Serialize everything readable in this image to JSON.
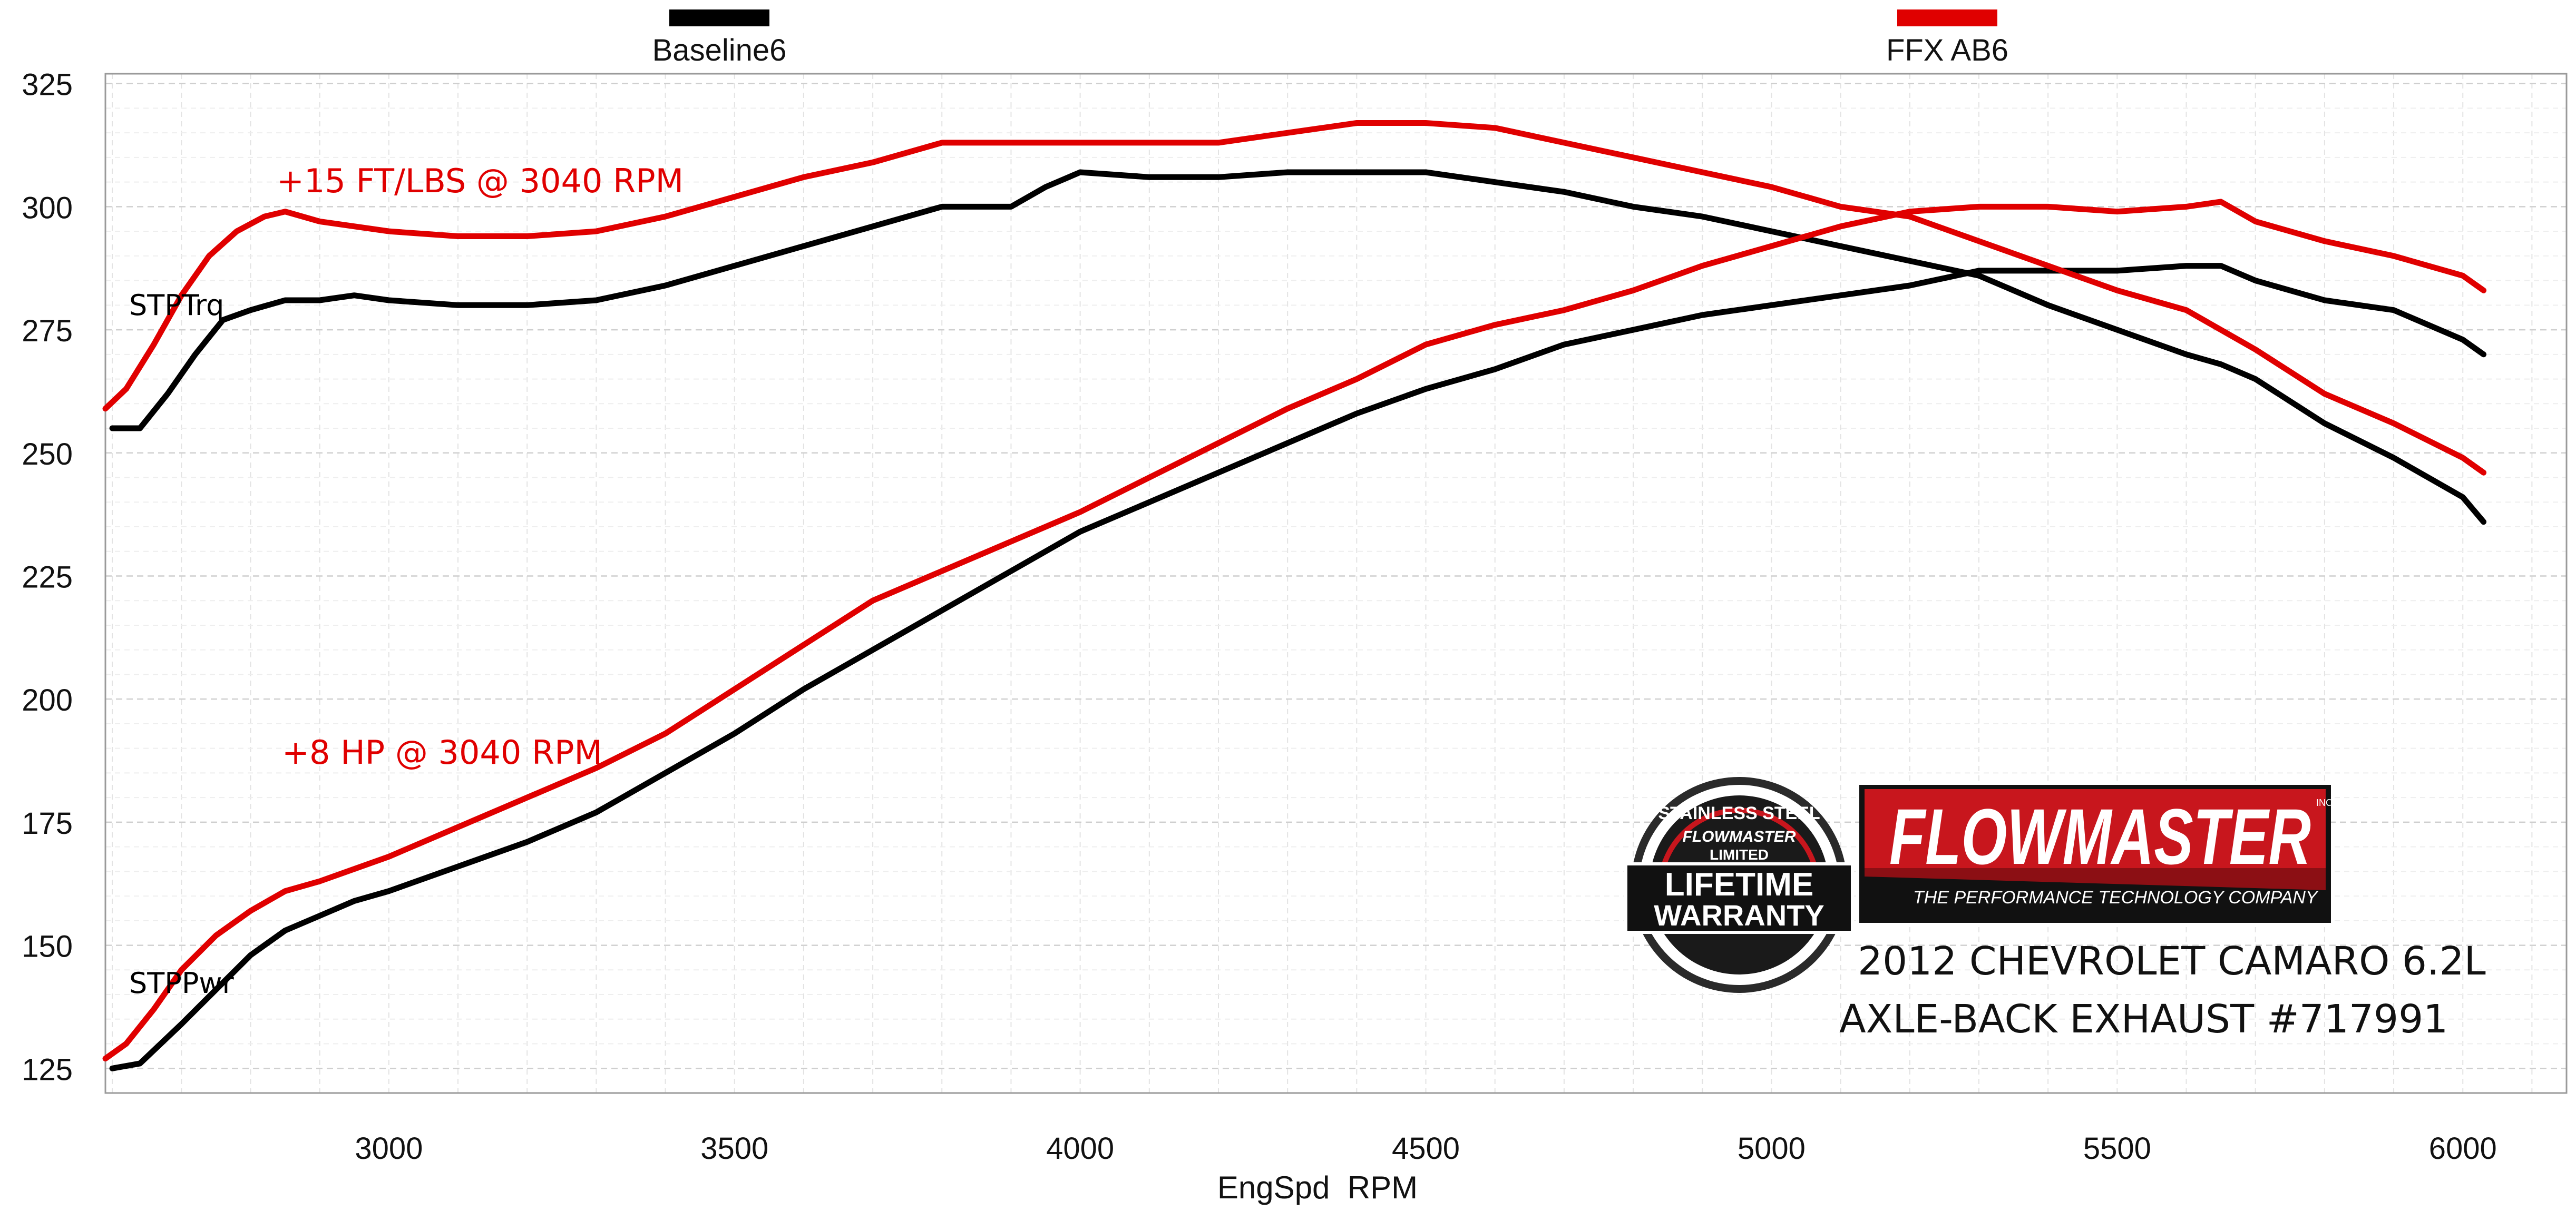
{
  "chart_data": {
    "type": "line",
    "xlabel": "EngSpd  RPM",
    "ylabel": "",
    "xlim": [
      2590,
      6150
    ],
    "ylim": [
      120,
      327
    ],
    "x_ticks": [
      3000,
      3500,
      4000,
      4500,
      5000,
      5500,
      6000
    ],
    "y_ticks": [
      125,
      150,
      175,
      200,
      225,
      250,
      275,
      300,
      325
    ],
    "grid": true,
    "legend": {
      "placement": "top",
      "entries": [
        {
          "name": "Baseline6",
          "color": "#000000"
        },
        {
          "name": "FFX AB6",
          "color": "#e00000"
        }
      ]
    },
    "series": [
      {
        "name": "Baseline6",
        "measure": "STPTrq",
        "color": "#000000",
        "x": [
          2600,
          2640,
          2680,
          2720,
          2760,
          2800,
          2850,
          2900,
          2950,
          3000,
          3100,
          3200,
          3300,
          3400,
          3500,
          3600,
          3700,
          3800,
          3900,
          3950,
          4000,
          4100,
          4200,
          4300,
          4400,
          4500,
          4600,
          4700,
          4800,
          4900,
          5000,
          5100,
          5200,
          5300,
          5400,
          5500,
          5600,
          5650,
          5700,
          5800,
          5900,
          6000,
          6030
        ],
        "y": [
          255,
          255,
          262,
          270,
          277,
          279,
          281,
          281,
          282,
          281,
          280,
          280,
          281,
          284,
          288,
          292,
          296,
          300,
          300,
          304,
          307,
          306,
          306,
          307,
          307,
          307,
          305,
          303,
          300,
          298,
          295,
          292,
          289,
          286,
          280,
          275,
          270,
          268,
          265,
          256,
          249,
          241,
          236
        ]
      },
      {
        "name": "Baseline6",
        "measure": "STPPwr",
        "color": "#000000",
        "x": [
          2600,
          2640,
          2700,
          2750,
          2800,
          2850,
          2900,
          2950,
          3000,
          3100,
          3200,
          3300,
          3400,
          3500,
          3600,
          3700,
          3800,
          3900,
          4000,
          4100,
          4200,
          4300,
          4400,
          4500,
          4600,
          4700,
          4800,
          4900,
          5000,
          5100,
          5200,
          5300,
          5400,
          5500,
          5600,
          5650,
          5700,
          5800,
          5900,
          6000,
          6030
        ],
        "y": [
          125,
          126,
          134,
          141,
          148,
          153,
          156,
          159,
          161,
          166,
          171,
          177,
          185,
          193,
          202,
          210,
          218,
          226,
          234,
          240,
          246,
          252,
          258,
          263,
          267,
          272,
          275,
          278,
          280,
          282,
          284,
          287,
          287,
          287,
          288,
          288,
          285,
          281,
          279,
          273,
          270
        ]
      },
      {
        "name": "FFX AB6",
        "measure": "STPTrq",
        "color": "#e00000",
        "x": [
          2590,
          2620,
          2660,
          2700,
          2740,
          2780,
          2820,
          2850,
          2900,
          3000,
          3100,
          3200,
          3300,
          3400,
          3500,
          3600,
          3700,
          3800,
          3900,
          4000,
          4100,
          4200,
          4300,
          4400,
          4500,
          4600,
          4700,
          4800,
          4900,
          5000,
          5100,
          5200,
          5300,
          5400,
          5500,
          5600,
          5700,
          5800,
          5900,
          6000,
          6030
        ],
        "y": [
          259,
          263,
          272,
          282,
          290,
          295,
          298,
          299,
          297,
          295,
          294,
          294,
          295,
          298,
          302,
          306,
          309,
          313,
          313,
          313,
          313,
          313,
          315,
          317,
          317,
          316,
          313,
          310,
          307,
          304,
          300,
          298,
          293,
          288,
          283,
          279,
          271,
          262,
          256,
          249,
          246
        ]
      },
      {
        "name": "FFX AB6",
        "measure": "STPPwr",
        "color": "#e00000",
        "x": [
          2590,
          2620,
          2660,
          2700,
          2750,
          2800,
          2850,
          2900,
          3000,
          3100,
          3200,
          3300,
          3400,
          3500,
          3600,
          3700,
          3800,
          3900,
          4000,
          4100,
          4200,
          4300,
          4400,
          4500,
          4600,
          4700,
          4800,
          4900,
          5000,
          5100,
          5200,
          5300,
          5400,
          5500,
          5600,
          5650,
          5700,
          5800,
          5900,
          6000,
          6030
        ],
        "y": [
          127,
          130,
          137,
          145,
          152,
          157,
          161,
          163,
          168,
          174,
          180,
          186,
          193,
          202,
          211,
          220,
          226,
          232,
          238,
          245,
          252,
          259,
          265,
          272,
          276,
          279,
          283,
          288,
          292,
          296,
          299,
          300,
          300,
          299,
          300,
          301,
          297,
          293,
          290,
          286,
          283
        ]
      }
    ],
    "annotations": [
      {
        "text": "+15 FT/LBS @ 3040 RPM",
        "color": "#e00000"
      },
      {
        "text": "+8 HP @ 3040 RPM",
        "color": "#e00000"
      },
      {
        "text": "STPTrq",
        "color": "#000000"
      },
      {
        "text": "STPPwr",
        "color": "#000000"
      }
    ]
  },
  "branding": {
    "warranty_badge": {
      "top_text": "STAINLESS STEEL",
      "brand": "FLOWMASTER",
      "limited": "LIMITED",
      "line1": "LIFETIME",
      "line2": "WARRANTY"
    },
    "logo": {
      "name": "FLOWMASTER",
      "inc": "INC.",
      "tagline": "THE PERFORMANCE TECHNOLOGY COMPANY",
      "color": "#c8161d"
    },
    "product_line1": "2012 CHEVROLET CAMARO 6.2L",
    "product_line2": "AXLE-BACK EXHAUST #717991"
  }
}
